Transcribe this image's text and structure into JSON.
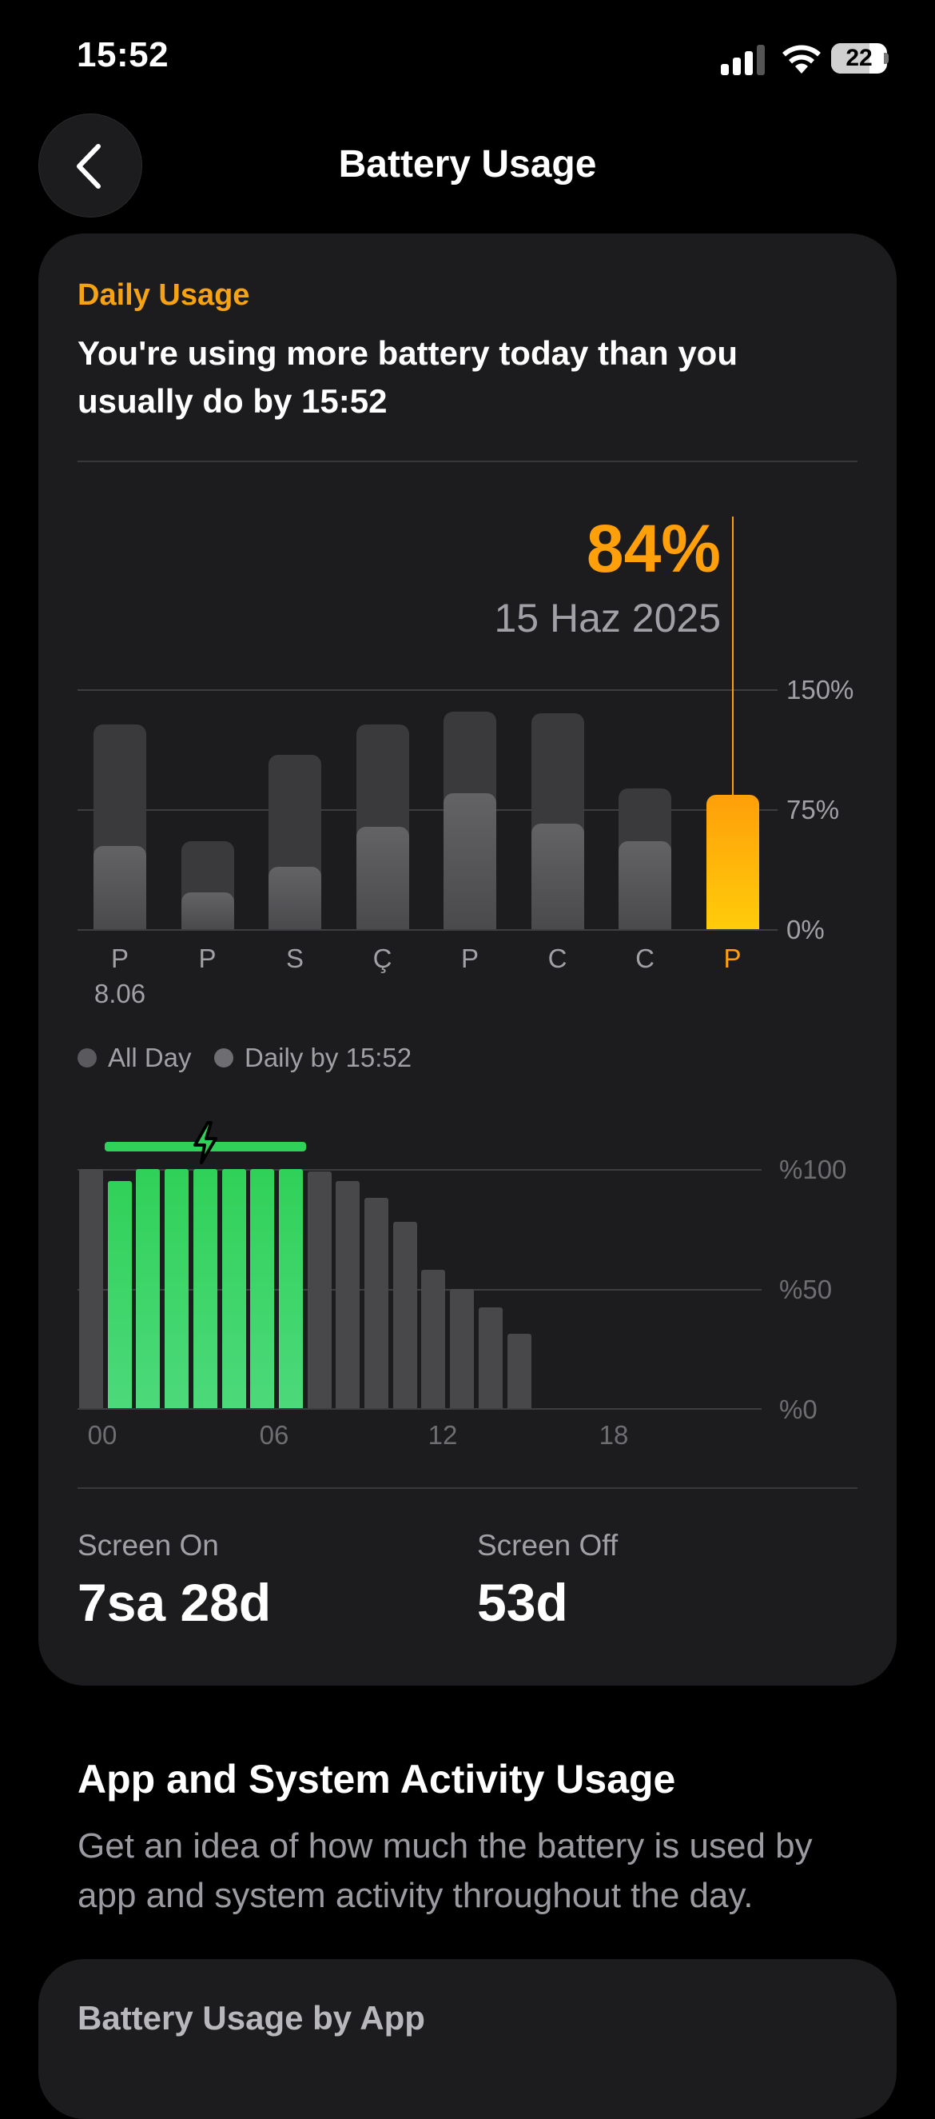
{
  "status_bar": {
    "time": "15:52",
    "battery_level": "22"
  },
  "nav": {
    "title": "Battery Usage"
  },
  "daily": {
    "label": "Daily Usage",
    "headline": "You're using more battery today than you usually do by 15:52",
    "selected_value": "84%",
    "selected_date": "15 Haz 2025",
    "legend_all_day": "All Day",
    "legend_by_time": "Daily by 15:52"
  },
  "chart_data": [
    {
      "type": "bar",
      "categories": [
        "P",
        "P",
        "S",
        "Ç",
        "P",
        "C",
        "C",
        "P"
      ],
      "first_date_label": "8.06",
      "ylim": [
        0,
        150
      ],
      "y_ticks": [
        "150%",
        "75%",
        "0%"
      ],
      "series": [
        {
          "name": "All Day",
          "values": [
            128,
            55,
            109,
            128,
            136,
            135,
            88,
            84
          ]
        },
        {
          "name": "Daily by 15:52",
          "values": [
            52,
            23,
            39,
            64,
            85,
            66,
            55,
            84
          ]
        }
      ],
      "highlight_index": 7,
      "colors": {
        "all_day": "#3a3a3c",
        "by_time": "#5c5c60",
        "highlight": "#ff9f0a"
      }
    },
    {
      "type": "bar",
      "x_ticks": [
        "00",
        "06",
        "12",
        "18"
      ],
      "y_ticks": [
        "%100",
        "%50",
        "%0"
      ],
      "ylim": [
        0,
        100
      ],
      "hours": [
        0,
        1,
        2,
        3,
        4,
        5,
        6,
        7,
        8,
        9,
        10,
        11,
        12,
        13,
        14,
        15
      ],
      "values": [
        100,
        95,
        100,
        100,
        100,
        100,
        100,
        100,
        99,
        95,
        88,
        78,
        58,
        50,
        42,
        31
      ],
      "charging": [
        false,
        true,
        true,
        true,
        true,
        true,
        true,
        true,
        false,
        false,
        false,
        false,
        false,
        false,
        false,
        false
      ],
      "colors": {
        "charging": "#30d158",
        "discharging": "#48484a"
      }
    }
  ],
  "screen": {
    "on_label": "Screen On",
    "on_value": "7sa 28d",
    "off_label": "Screen Off",
    "off_value": "53d"
  },
  "activity": {
    "title": "App and System Activity Usage",
    "description": "Get an idea of how much the battery is used by app and system activity throughout the day.",
    "next_card_title": "Battery Usage by App"
  }
}
